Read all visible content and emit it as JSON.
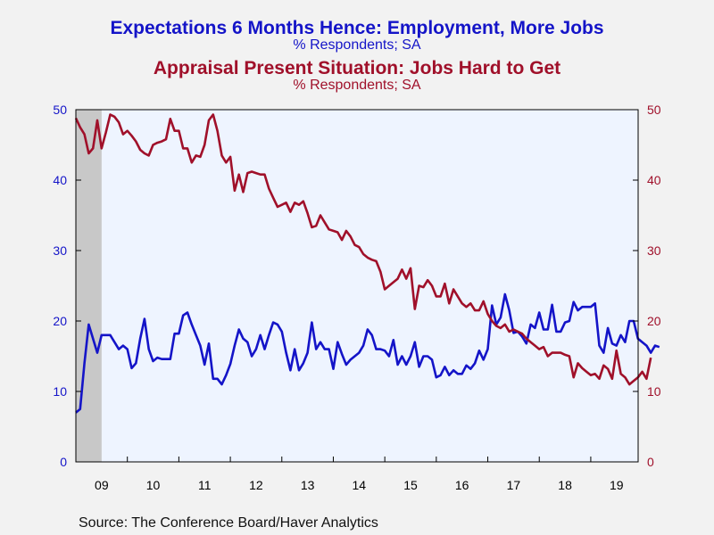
{
  "chart_data": {
    "type": "line",
    "title": "Expectations 6 Months Hence: Employment, More Jobs",
    "title_subtitle": "% Respondents; SA",
    "title2": "Appraisal Present Situation: Jobs Hard to Get",
    "title2_subtitle": "% Respondents; SA",
    "source": "Source:  The Conference Board/Haver Analytics",
    "x_tick_labels": [
      "09",
      "10",
      "11",
      "12",
      "13",
      "14",
      "15",
      "16",
      "17",
      "18",
      "19"
    ],
    "y_left_ticks": [
      "0",
      "10",
      "20",
      "30",
      "40",
      "50"
    ],
    "y_right_ticks": [
      "0",
      "10",
      "20",
      "30",
      "40",
      "50"
    ],
    "ylim_left": [
      0,
      50
    ],
    "ylim_right": [
      0,
      50
    ],
    "xlim": [
      2009.0,
      2019.92
    ],
    "recession_shade": [
      2009.0,
      2009.5
    ],
    "grid": false,
    "colors": {
      "series1": "#1414c8",
      "series2": "#a0102a",
      "shade": "#c8c8c8",
      "plot_bg": "#eef4ff"
    },
    "series": [
      {
        "name": "Expectations 6 Months Hence: Employment, More Jobs",
        "axis": "left",
        "color": "#1414c8",
        "x_start": 2009.0,
        "x_step": 0.08333,
        "values": [
          7.0,
          7.5,
          14.0,
          19.5,
          17.5,
          15.5,
          18.0,
          18.0,
          18.0,
          17.0,
          16.0,
          16.5,
          16.0,
          13.3,
          14.0,
          17.5,
          20.3,
          16.0,
          14.3,
          14.8,
          14.6,
          14.6,
          14.6,
          18.2,
          18.2,
          20.8,
          21.2,
          19.5,
          18.0,
          16.5,
          13.8,
          16.8,
          11.8,
          11.8,
          11.0,
          12.3,
          13.9,
          16.5,
          18.8,
          17.5,
          17.0,
          15.0,
          16.0,
          18.0,
          16.0,
          18.0,
          19.8,
          19.5,
          18.5,
          15.5,
          13.0,
          16.0,
          13.0,
          14.0,
          15.5,
          19.8,
          16.0,
          17.0,
          16.0,
          16.0,
          13.2,
          17.0,
          15.3,
          13.8,
          14.5,
          15.0,
          15.5,
          16.5,
          18.8,
          18.0,
          16.0,
          16.0,
          15.8,
          15.0,
          17.3,
          13.8,
          15.0,
          13.8,
          15.0,
          17.0,
          13.5,
          15.0,
          15.0,
          14.5,
          12.0,
          12.3,
          13.5,
          12.3,
          13.0,
          12.5,
          12.5,
          13.7,
          13.2,
          14.0,
          15.8,
          14.5,
          16.0,
          22.2,
          19.5,
          20.5,
          23.8,
          21.5,
          18.3,
          18.5,
          17.8,
          16.8,
          19.5,
          19.0,
          21.2,
          18.8,
          18.8,
          22.3,
          18.5,
          18.5,
          19.8,
          20.0,
          22.7,
          21.5,
          22.0,
          22.0,
          22.0,
          22.5,
          16.5,
          15.5,
          19.0,
          16.8,
          16.5,
          18.0,
          17.0,
          20.0,
          20.0,
          17.5,
          17.0,
          16.5,
          15.5,
          16.5,
          16.3
        ]
      },
      {
        "name": "Appraisal Present Situation: Jobs Hard to Get",
        "axis": "right",
        "color": "#a0102a",
        "x_start": 2009.0,
        "x_step": 0.08333,
        "values": [
          48.8,
          47.5,
          46.5,
          43.8,
          44.5,
          48.5,
          44.5,
          46.8,
          49.3,
          49.0,
          48.2,
          46.5,
          47.0,
          46.3,
          45.5,
          44.3,
          43.8,
          43.5,
          45.0,
          45.3,
          45.5,
          45.8,
          48.7,
          47.0,
          47.0,
          44.5,
          44.5,
          42.5,
          43.5,
          43.3,
          45.0,
          48.5,
          49.3,
          47.0,
          43.5,
          42.5,
          43.3,
          38.5,
          40.8,
          38.3,
          41.0,
          41.2,
          41.0,
          40.8,
          40.8,
          38.8,
          37.5,
          36.2,
          36.5,
          36.8,
          35.5,
          36.8,
          36.5,
          37.0,
          35.3,
          33.3,
          33.5,
          35.0,
          34.0,
          33.0,
          32.8,
          32.6,
          31.5,
          32.8,
          32.0,
          30.8,
          30.5,
          29.5,
          29.0,
          28.7,
          28.5,
          27.0,
          24.5,
          25.0,
          25.5,
          26.0,
          27.3,
          26.0,
          27.5,
          21.7,
          25.0,
          24.8,
          25.8,
          25.0,
          23.5,
          23.5,
          25.3,
          22.5,
          24.5,
          23.5,
          22.5,
          22.0,
          22.5,
          21.5,
          21.5,
          22.8,
          21.0,
          20.0,
          19.3,
          19.0,
          19.5,
          18.5,
          18.8,
          18.5,
          18.2,
          17.5,
          17.0,
          16.5,
          16.0,
          16.3,
          15.0,
          15.5,
          15.5,
          15.5,
          15.2,
          15.0,
          12.0,
          14.0,
          13.3,
          12.8,
          12.3,
          12.5,
          11.8,
          13.7,
          13.2,
          11.8,
          15.8,
          12.5,
          12.0,
          11.0,
          11.5,
          12.0,
          12.8,
          11.8,
          14.8
        ]
      }
    ]
  }
}
